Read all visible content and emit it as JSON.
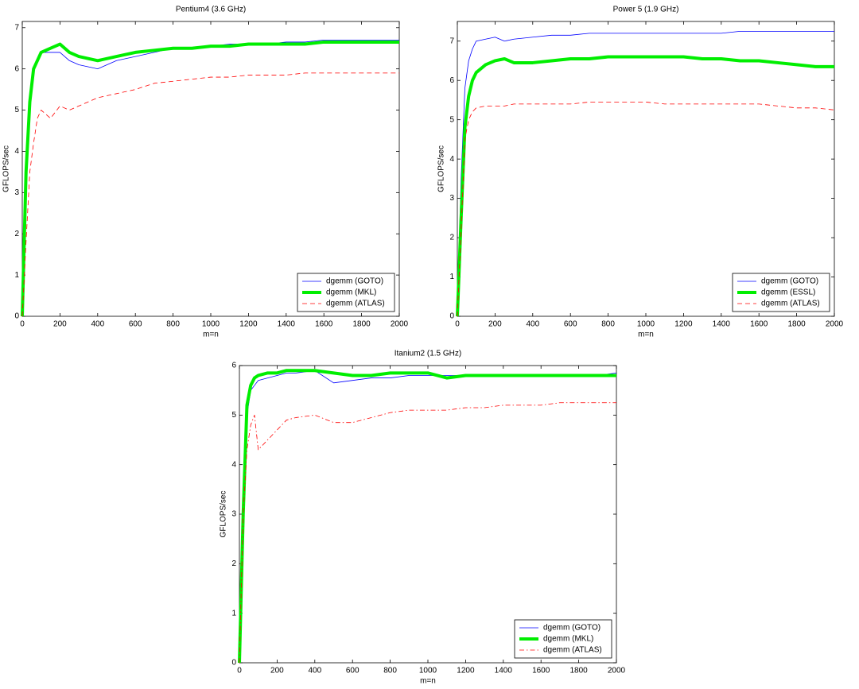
{
  "chart_data": [
    {
      "type": "line",
      "title": "Pentium4 (3.6 GHz)",
      "xlabel": "m=n",
      "ylabel": "GFLOPS/sec",
      "x": [
        0,
        20,
        40,
        60,
        80,
        100,
        150,
        200,
        250,
        300,
        400,
        500,
        600,
        700,
        800,
        900,
        1000,
        1100,
        1200,
        1300,
        1400,
        1500,
        1600,
        1700,
        1800,
        1900,
        2000
      ],
      "series": [
        {
          "name": "dgemm (GOTO)",
          "color": "#0000ff",
          "linestyle": "thin",
          "values": [
            0,
            3.0,
            5.0,
            5.9,
            6.2,
            6.4,
            6.4,
            6.4,
            6.2,
            6.1,
            6.0,
            6.2,
            6.3,
            6.4,
            6.5,
            6.5,
            6.55,
            6.6,
            6.6,
            6.6,
            6.65,
            6.65,
            6.7,
            6.7,
            6.7,
            6.7,
            6.7
          ]
        },
        {
          "name": "dgemm (MKL)",
          "color": "#00ee00",
          "linestyle": "thick",
          "values": [
            0,
            3.5,
            5.2,
            6.0,
            6.2,
            6.4,
            6.5,
            6.6,
            6.4,
            6.3,
            6.2,
            6.3,
            6.4,
            6.45,
            6.5,
            6.5,
            6.55,
            6.55,
            6.6,
            6.6,
            6.6,
            6.6,
            6.65,
            6.65,
            6.65,
            6.65,
            6.65
          ]
        },
        {
          "name": "dgemm (ATLAS)",
          "color": "#ff0000",
          "linestyle": "dashed",
          "values": [
            0,
            1.8,
            3.5,
            4.2,
            4.8,
            5.0,
            4.8,
            5.1,
            5.0,
            5.1,
            5.3,
            5.4,
            5.5,
            5.65,
            5.7,
            5.75,
            5.8,
            5.8,
            5.85,
            5.85,
            5.85,
            5.9,
            5.9,
            5.9,
            5.9,
            5.9,
            5.9
          ]
        }
      ],
      "xlim": [
        0,
        2000
      ],
      "ylim": [
        0,
        7.15
      ],
      "xticks": [
        0,
        200,
        400,
        600,
        800,
        1000,
        1200,
        1400,
        1600,
        1800,
        2000
      ],
      "yticks": [
        0,
        1,
        2,
        3,
        4,
        5,
        6,
        7
      ],
      "legend": "lower right"
    },
    {
      "type": "line",
      "title": "Power 5 (1.9 GHz)",
      "xlabel": "m=n",
      "ylabel": "GFLOPS/sec",
      "x": [
        0,
        20,
        40,
        60,
        80,
        100,
        150,
        200,
        250,
        300,
        400,
        500,
        600,
        700,
        800,
        900,
        1000,
        1100,
        1200,
        1300,
        1400,
        1500,
        1600,
        1700,
        1800,
        1900,
        2000
      ],
      "series": [
        {
          "name": "dgemm (GOTO)",
          "color": "#0000ff",
          "linestyle": "thin",
          "values": [
            0,
            3.5,
            5.8,
            6.5,
            6.8,
            7.0,
            7.05,
            7.1,
            7.0,
            7.05,
            7.1,
            7.15,
            7.15,
            7.2,
            7.2,
            7.2,
            7.2,
            7.2,
            7.2,
            7.2,
            7.2,
            7.25,
            7.25,
            7.25,
            7.25,
            7.25,
            7.25
          ]
        },
        {
          "name": "dgemm (ESSL)",
          "color": "#00ee00",
          "linestyle": "thick",
          "values": [
            0,
            2.5,
            4.8,
            5.6,
            6.0,
            6.2,
            6.4,
            6.5,
            6.55,
            6.45,
            6.45,
            6.5,
            6.55,
            6.55,
            6.6,
            6.6,
            6.6,
            6.6,
            6.6,
            6.55,
            6.55,
            6.5,
            6.5,
            6.45,
            6.4,
            6.35,
            6.35
          ]
        },
        {
          "name": "dgemm (ATLAS)",
          "color": "#ff0000",
          "linestyle": "dashed",
          "values": [
            0,
            2.2,
            4.5,
            5.0,
            5.2,
            5.3,
            5.35,
            5.35,
            5.35,
            5.4,
            5.4,
            5.4,
            5.4,
            5.45,
            5.45,
            5.45,
            5.45,
            5.4,
            5.4,
            5.4,
            5.4,
            5.4,
            5.4,
            5.35,
            5.3,
            5.3,
            5.25
          ]
        }
      ],
      "xlim": [
        0,
        2000
      ],
      "ylim": [
        0,
        7.5
      ],
      "xticks": [
        0,
        200,
        400,
        600,
        800,
        1000,
        1200,
        1400,
        1600,
        1800,
        2000
      ],
      "yticks": [
        0,
        1,
        2,
        3,
        4,
        5,
        6,
        7
      ],
      "legend": "lower right"
    },
    {
      "type": "line",
      "title": "Itanium2 (1.5 GHz)",
      "xlabel": "m=n",
      "ylabel": "GFLOPS/sec",
      "x": [
        0,
        20,
        40,
        60,
        80,
        100,
        150,
        200,
        250,
        300,
        400,
        500,
        600,
        700,
        800,
        900,
        1000,
        1100,
        1200,
        1300,
        1400,
        1500,
        1600,
        1700,
        1800,
        1900,
        2000
      ],
      "series": [
        {
          "name": "dgemm (GOTO)",
          "color": "#0000ff",
          "linestyle": "thin",
          "values": [
            0,
            3.5,
            5.0,
            5.5,
            5.6,
            5.7,
            5.75,
            5.8,
            5.85,
            5.85,
            5.9,
            5.65,
            5.7,
            5.75,
            5.75,
            5.8,
            5.8,
            5.8,
            5.8,
            5.8,
            5.8,
            5.8,
            5.8,
            5.8,
            5.8,
            5.8,
            5.85
          ]
        },
        {
          "name": "dgemm (MKL)",
          "color": "#00ee00",
          "linestyle": "thick",
          "values": [
            0,
            3.0,
            5.2,
            5.6,
            5.75,
            5.8,
            5.85,
            5.85,
            5.9,
            5.9,
            5.9,
            5.85,
            5.8,
            5.8,
            5.85,
            5.85,
            5.85,
            5.75,
            5.8,
            5.8,
            5.8,
            5.8,
            5.8,
            5.8,
            5.8,
            5.8,
            5.8
          ]
        },
        {
          "name": "dgemm (ATLAS)",
          "color": "#ff0000",
          "linestyle": "dashdot",
          "values": [
            0,
            3.0,
            4.3,
            4.8,
            5.0,
            4.3,
            4.5,
            4.7,
            4.9,
            4.95,
            5.0,
            4.85,
            4.85,
            4.95,
            5.05,
            5.1,
            5.1,
            5.1,
            5.15,
            5.15,
            5.2,
            5.2,
            5.2,
            5.25,
            5.25,
            5.25,
            5.25
          ]
        }
      ],
      "xlim": [
        0,
        2000
      ],
      "ylim": [
        0,
        6
      ],
      "xticks": [
        0,
        200,
        400,
        600,
        800,
        1000,
        1200,
        1400,
        1600,
        1800,
        2000
      ],
      "yticks": [
        0,
        1,
        2,
        3,
        4,
        5,
        6
      ],
      "legend": "lower right"
    }
  ]
}
